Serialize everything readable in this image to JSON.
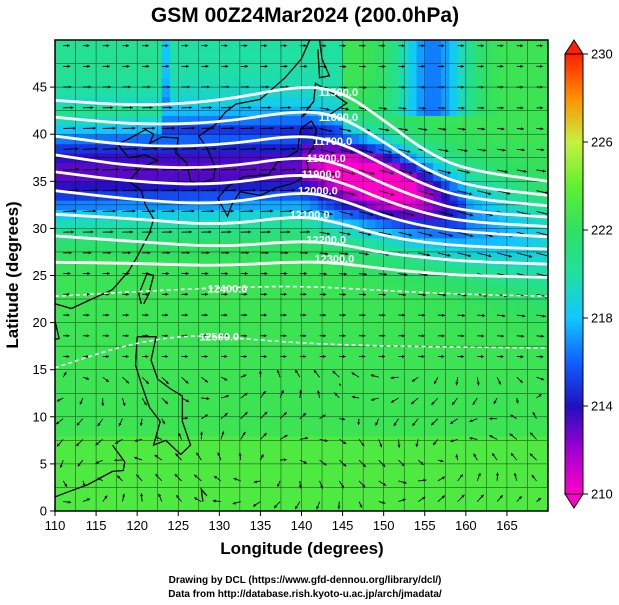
{
  "chart_data": {
    "type": "heatmap",
    "title": "GSM 00Z24Mar2024 (200.0hPa)",
    "xlabel": "Longitude (degrees)",
    "ylabel": "Latitude  (degrees)",
    "xlim": [
      110,
      170
    ],
    "ylim": [
      0,
      50
    ],
    "xticks": [
      "110",
      "115",
      "120",
      "125",
      "130",
      "135",
      "140",
      "145",
      "150",
      "155",
      "160",
      "165"
    ],
    "yticks": [
      "0",
      "5",
      "10",
      "15",
      "20",
      "25",
      "30",
      "35",
      "40",
      "45"
    ],
    "grid": true,
    "colorbar": {
      "range": [
        210,
        230
      ],
      "labels": [
        "230",
        "226",
        "222",
        "218",
        "214",
        "210"
      ],
      "placement": "right"
    },
    "contours": [
      {
        "value": 11500,
        "label": "11500.0",
        "x": 144.5,
        "y": 44.5,
        "points": [
          [
            110,
            43.6
          ],
          [
            120,
            43.0
          ],
          [
            130,
            43.5
          ],
          [
            140,
            45.2
          ],
          [
            145,
            44.5
          ],
          [
            150,
            41.5
          ],
          [
            155,
            38.2
          ],
          [
            160,
            36.2
          ],
          [
            170,
            35.0
          ]
        ]
      },
      {
        "value": 11600,
        "label": "11600.0",
        "x": 144.5,
        "y": 41.8,
        "points": [
          [
            110,
            41.8
          ],
          [
            120,
            41.0
          ],
          [
            130,
            41.2
          ],
          [
            140,
            42.6
          ],
          [
            145,
            41.8
          ],
          [
            150,
            39.2
          ],
          [
            155,
            36.3
          ],
          [
            160,
            34.5
          ],
          [
            170,
            33.5
          ]
        ]
      },
      {
        "value": 11700,
        "label": "11700.0",
        "x": 143.8,
        "y": 39.3,
        "points": [
          [
            110,
            39.8
          ],
          [
            120,
            38.7
          ],
          [
            130,
            38.8
          ],
          [
            140,
            40.0
          ],
          [
            145,
            39.0
          ],
          [
            150,
            36.8
          ],
          [
            155,
            34.6
          ],
          [
            160,
            33.2
          ],
          [
            170,
            32.4
          ]
        ]
      },
      {
        "value": 11800,
        "label": "11800.0",
        "x": 143.0,
        "y": 37.5,
        "points": [
          [
            110,
            37.8
          ],
          [
            120,
            36.5
          ],
          [
            130,
            36.4
          ],
          [
            140,
            37.7
          ],
          [
            145,
            36.8
          ],
          [
            150,
            34.7
          ],
          [
            155,
            33.0
          ],
          [
            160,
            31.8
          ],
          [
            170,
            31.2
          ]
        ]
      },
      {
        "value": 11900,
        "label": "11900.0",
        "x": 142.4,
        "y": 35.8,
        "points": [
          [
            110,
            36.0
          ],
          [
            120,
            34.9
          ],
          [
            130,
            34.6
          ],
          [
            140,
            35.9
          ],
          [
            145,
            34.9
          ],
          [
            150,
            33.0
          ],
          [
            155,
            31.6
          ],
          [
            160,
            30.7
          ],
          [
            170,
            30.2
          ]
        ]
      },
      {
        "value": 12000,
        "label": "12000.0",
        "x": 142.0,
        "y": 34.0,
        "points": [
          [
            110,
            34.0
          ],
          [
            120,
            33.0
          ],
          [
            130,
            32.5
          ],
          [
            140,
            34.0
          ],
          [
            145,
            33.0
          ],
          [
            150,
            31.3
          ],
          [
            155,
            30.2
          ],
          [
            160,
            29.6
          ],
          [
            170,
            29.1
          ]
        ]
      },
      {
        "value": 12100,
        "label": "12100.0",
        "x": 141.0,
        "y": 31.5,
        "points": [
          [
            110,
            31.5
          ],
          [
            120,
            31.0
          ],
          [
            130,
            30.3
          ],
          [
            140,
            31.4
          ],
          [
            145,
            30.5
          ],
          [
            150,
            29.2
          ],
          [
            155,
            28.5
          ],
          [
            160,
            28.1
          ],
          [
            170,
            27.8
          ]
        ]
      },
      {
        "value": 12200,
        "label": "12200.0",
        "x": 143.0,
        "y": 28.8,
        "points": [
          [
            110,
            29.2
          ],
          [
            120,
            28.6
          ],
          [
            130,
            28.0
          ],
          [
            140,
            28.7
          ],
          [
            145,
            28.3
          ],
          [
            150,
            27.4
          ],
          [
            155,
            26.9
          ],
          [
            160,
            26.5
          ],
          [
            170,
            26.2
          ]
        ]
      },
      {
        "value": 12300,
        "label": "12300.0",
        "x": 144.0,
        "y": 26.8,
        "points": [
          [
            110,
            26.4
          ],
          [
            120,
            26.3
          ],
          [
            130,
            26.0
          ],
          [
            140,
            26.5
          ],
          [
            145,
            26.3
          ],
          [
            150,
            25.7
          ],
          [
            155,
            25.3
          ],
          [
            160,
            25.0
          ],
          [
            170,
            24.8
          ]
        ]
      },
      {
        "value": 12400,
        "label": "12400.0",
        "x": 131.0,
        "y": 23.6,
        "points": [
          [
            110,
            22.8
          ],
          [
            120,
            23.3
          ],
          [
            130,
            23.7
          ],
          [
            140,
            23.9
          ],
          [
            150,
            23.4
          ],
          [
            160,
            23.0
          ],
          [
            170,
            22.8
          ]
        ]
      },
      {
        "value": 12500,
        "label": "12500.0",
        "x": 130.0,
        "y": 18.5,
        "points": [
          [
            110,
            15.2
          ],
          [
            118,
            17.5
          ],
          [
            125,
            18.6
          ],
          [
            130,
            18.5
          ],
          [
            140,
            17.8
          ],
          [
            150,
            17.5
          ],
          [
            160,
            17.4
          ],
          [
            170,
            17.3
          ]
        ]
      }
    ]
  },
  "credits": {
    "line1": "Drawing by DCL (https://www.gfd-dennou.org/library/dcl/)",
    "line2": "Data from http://database.rish.kyoto-u.ac.jp/arch/jmadata/"
  }
}
